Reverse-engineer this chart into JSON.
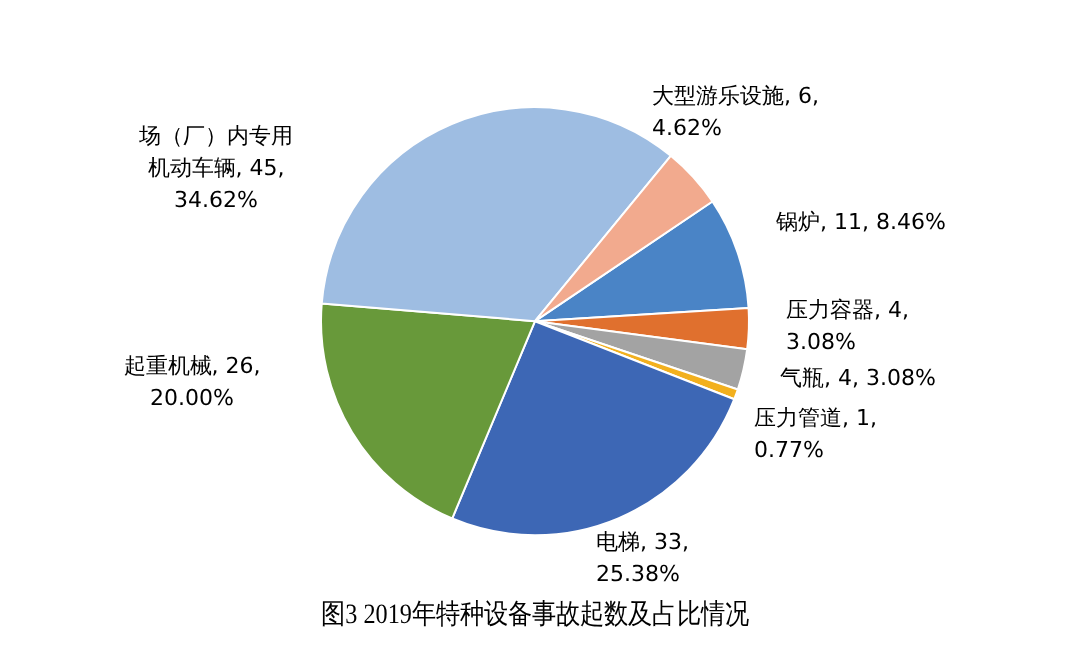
{
  "chart_data": {
    "type": "pie",
    "title": "图3 2019年特种设备事故起数及占比情况",
    "categories": [
      "锅炉",
      "压力容器",
      "气瓶",
      "压力管道",
      "电梯",
      "起重机械",
      "场（厂）内专用机动车辆",
      "大型游乐设施"
    ],
    "values": [
      11,
      4,
      4,
      1,
      33,
      26,
      45,
      6
    ],
    "value_labels": [
      "11, 8.46%",
      "4, 3.08%",
      "4, 3.08%",
      "1, 0.77%",
      "33, 25.38%",
      "26, 20.00%",
      "45, 34.62%",
      "6, 4.62%"
    ],
    "colors": [
      "#4a84c6",
      "#e0702e",
      "#a3a3a3",
      "#f2b01e",
      "#3d67b5",
      "#68993a",
      "#9ebde2",
      "#f2aa8e"
    ],
    "legend": false
  }
}
